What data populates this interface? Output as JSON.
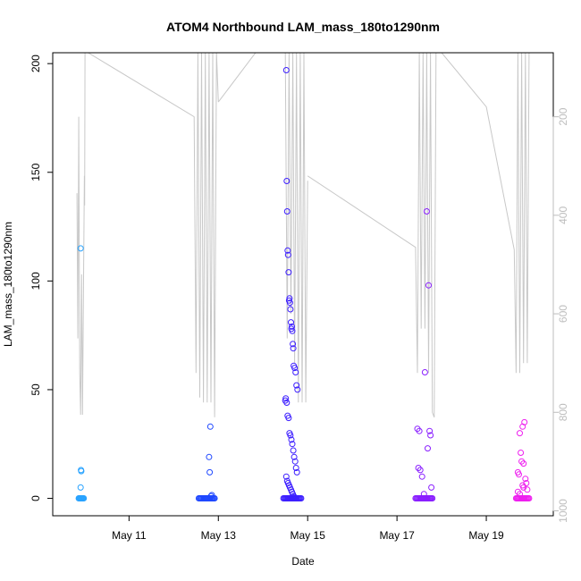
{
  "chart_data": {
    "type": "scatter",
    "title": "ATOM4 Northbound LAM_mass_180to1290nm",
    "xlabel": "Date",
    "ylabel": "LAM_mass_180to1290nm",
    "x_axis": {
      "type": "date",
      "range": [
        "2016-05-09T07:00",
        "2016-05-20T12:00"
      ],
      "ticks": [
        {
          "value": "2016-05-11",
          "label": "May 11"
        },
        {
          "value": "2016-05-13",
          "label": "May 13"
        },
        {
          "value": "2016-05-15",
          "label": "May 15"
        },
        {
          "value": "2016-05-17",
          "label": "May 17"
        },
        {
          "value": "2016-05-19",
          "label": "May 19"
        }
      ]
    },
    "y_axis": {
      "range": [
        -8,
        205
      ],
      "ticks": [
        0,
        50,
        100,
        150,
        200
      ]
    },
    "y2_axis": {
      "reversed": true,
      "color": "#bdbdbd",
      "range": [
        1010,
        70
      ],
      "ticks": [
        200,
        400,
        600,
        800,
        1000
      ]
    },
    "grid": false,
    "legend": "none",
    "colors": {
      "day1": "#29a3ff",
      "day2": "#1f48ff",
      "day3": "#3d1fff",
      "day4": "#8a1fff",
      "day5": "#ee1fef",
      "altitude_line": "#c8c8c8"
    },
    "series": [
      {
        "color": "#29a3ff",
        "x": [
          "2016-05-09T21:00",
          "2016-05-09T21:20",
          "2016-05-09T21:40",
          "2016-05-09T22:00",
          "2016-05-09T22:20",
          "2016-05-09T22:40",
          "2016-05-09T23:00",
          "2016-05-09T23:20",
          "2016-05-09T23:40",
          "2016-05-09T22:00",
          "2016-05-09T22:10",
          "2016-05-09T22:20",
          "2016-05-09T22:00"
        ],
        "y": [
          0,
          0,
          0,
          0,
          0,
          0,
          0,
          0,
          0,
          115,
          13,
          12.5,
          5
        ]
      },
      {
        "color": "#1f48ff",
        "x": [
          "2016-05-12T13:30",
          "2016-05-12T14:00",
          "2016-05-12T14:30",
          "2016-05-12T15:00",
          "2016-05-12T15:30",
          "2016-05-12T16:00",
          "2016-05-12T16:30",
          "2016-05-12T17:00",
          "2016-05-12T17:30",
          "2016-05-12T18:00",
          "2016-05-12T18:30",
          "2016-05-12T19:00",
          "2016-05-12T19:30",
          "2016-05-12T20:00",
          "2016-05-12T20:30",
          "2016-05-12T21:00",
          "2016-05-12T21:30",
          "2016-05-12T22:00",
          "2016-05-12T19:00",
          "2016-05-12T19:20",
          "2016-05-12T19:40",
          "2016-05-12T20:30",
          "2016-05-12T20:00"
        ],
        "y": [
          0,
          0,
          0,
          0,
          0,
          0,
          0,
          0,
          0,
          0,
          0,
          0,
          0,
          0,
          0,
          0,
          0,
          0,
          19,
          12,
          33,
          1.5,
          1
        ]
      },
      {
        "color": "#3d1fff",
        "x": [
          "2016-05-14T11:00",
          "2016-05-14T11:30",
          "2016-05-14T12:00",
          "2016-05-14T12:30",
          "2016-05-14T13:00",
          "2016-05-14T13:30",
          "2016-05-14T14:00",
          "2016-05-14T14:30",
          "2016-05-14T15:00",
          "2016-05-14T15:30",
          "2016-05-14T16:00",
          "2016-05-14T16:30",
          "2016-05-14T17:00",
          "2016-05-14T17:30",
          "2016-05-14T18:00",
          "2016-05-14T18:30",
          "2016-05-14T19:00",
          "2016-05-14T19:30",
          "2016-05-14T20:00",
          "2016-05-14T20:30",
          "2016-05-14T12:30",
          "2016-05-14T12:45",
          "2016-05-14T13:00",
          "2016-05-14T13:15",
          "2016-05-14T13:30",
          "2016-05-14T13:45",
          "2016-05-14T14:00",
          "2016-05-14T14:15",
          "2016-05-14T14:30",
          "2016-05-14T14:45",
          "2016-05-14T15:00",
          "2016-05-14T15:15",
          "2016-05-14T15:30",
          "2016-05-14T15:45",
          "2016-05-14T16:00",
          "2016-05-14T16:15",
          "2016-05-14T16:30",
          "2016-05-14T17:00",
          "2016-05-14T17:30",
          "2016-05-14T18:00",
          "2016-05-14T18:30",
          "2016-05-14T12:00",
          "2016-05-14T12:15",
          "2016-05-14T12:45",
          "2016-05-14T13:15",
          "2016-05-14T13:45",
          "2016-05-14T14:15",
          "2016-05-14T14:45",
          "2016-05-14T15:15",
          "2016-05-14T15:45",
          "2016-05-14T16:15",
          "2016-05-14T16:45",
          "2016-05-14T17:15",
          "2016-05-14T17:45",
          "2016-05-14T18:15",
          "2016-05-14T12:30",
          "2016-05-14T13:00",
          "2016-05-14T13:30",
          "2016-05-14T14:00",
          "2016-05-14T14:30",
          "2016-05-14T15:00",
          "2016-05-14T15:30",
          "2016-05-14T16:00",
          "2016-05-14T16:30",
          "2016-05-14T17:00"
        ],
        "y": [
          0,
          0,
          0,
          0,
          0,
          0,
          0,
          0,
          0,
          0,
          0,
          0,
          0,
          0,
          0,
          0,
          0,
          0,
          0,
          0,
          197,
          146,
          132,
          114,
          112,
          104,
          91,
          92,
          90,
          87,
          81,
          78,
          79,
          77,
          71,
          69,
          61,
          60,
          58,
          52,
          50,
          45,
          46,
          44,
          38,
          37,
          30,
          29,
          27,
          25,
          22,
          19,
          17,
          14,
          12,
          10,
          8,
          7,
          6,
          5,
          4,
          3,
          2,
          1,
          0.5
        ]
      },
      {
        "color": "#8a1fff",
        "x": [
          "2016-05-17T10:00",
          "2016-05-17T10:30",
          "2016-05-17T11:00",
          "2016-05-17T11:30",
          "2016-05-17T12:00",
          "2016-05-17T12:30",
          "2016-05-17T13:00",
          "2016-05-17T13:30",
          "2016-05-17T14:00",
          "2016-05-17T14:30",
          "2016-05-17T15:00",
          "2016-05-17T15:30",
          "2016-05-17T16:00",
          "2016-05-17T16:30",
          "2016-05-17T17:00",
          "2016-05-17T17:30",
          "2016-05-17T18:00",
          "2016-05-17T18:30",
          "2016-05-17T19:00",
          "2016-05-17T16:00",
          "2016-05-17T17:00",
          "2016-05-17T15:00",
          "2016-05-17T11:00",
          "2016-05-17T12:00",
          "2016-05-17T16:30",
          "2016-05-17T17:30",
          "2016-05-17T18:00",
          "2016-05-17T11:30",
          "2016-05-17T12:30",
          "2016-05-17T13:30",
          "2016-05-17T18:30",
          "2016-05-17T14:30"
        ],
        "y": [
          0,
          0,
          0,
          0,
          0,
          0,
          0,
          0,
          0,
          0,
          0,
          0,
          0,
          0,
          0,
          0,
          0,
          0,
          0,
          132,
          98,
          58,
          32,
          31,
          23,
          31,
          29,
          14,
          13,
          10,
          5,
          2
        ]
      },
      {
        "color": "#ee1fef",
        "x": [
          "2016-05-19T16:00",
          "2016-05-19T16:30",
          "2016-05-19T17:00",
          "2016-05-19T17:30",
          "2016-05-19T18:00",
          "2016-05-19T18:30",
          "2016-05-19T19:00",
          "2016-05-19T19:30",
          "2016-05-19T20:00",
          "2016-05-19T20:30",
          "2016-05-19T21:00",
          "2016-05-19T21:30",
          "2016-05-19T22:00",
          "2016-05-19T22:30",
          "2016-05-19T23:00",
          "2016-05-19T20:30",
          "2016-05-19T19:30",
          "2016-05-19T18:00",
          "2016-05-19T18:30",
          "2016-05-19T19:00",
          "2016-05-19T20:00",
          "2016-05-19T17:00",
          "2016-05-19T17:30",
          "2016-05-19T21:00",
          "2016-05-19T21:30",
          "2016-05-19T19:30",
          "2016-05-19T20:00",
          "2016-05-19T22:00",
          "2016-05-19T17:00",
          "2016-05-19T18:00"
        ],
        "y": [
          0,
          0,
          0,
          0,
          0,
          0,
          0,
          0,
          0,
          0,
          0,
          0,
          0,
          0,
          0,
          35,
          33,
          30,
          21,
          17,
          16,
          12,
          11,
          9,
          7,
          6,
          5,
          4,
          3,
          2
        ]
      }
    ],
    "secondary_series": {
      "color": "#c8c8c8",
      "segments": [
        {
          "x": [
            "2016-05-09T20:00",
            "2016-05-09T20:30",
            "2016-05-09T21:00",
            "2016-05-09T21:30",
            "2016-05-09T22:00",
            "2016-05-09T22:30",
            "2016-05-09T23:00",
            "2016-05-10T00:00",
            "2016-05-10T00:10",
            "2016-05-10T00:20",
            "2016-05-10T00:30"
          ],
          "y": [
            355,
            650,
            200,
            720,
            805,
            520,
            805,
            320,
            380,
            70,
            70
          ]
        },
        {
          "x": [
            "2016-05-10T02:00",
            "2016-05-12T11:00",
            "2016-05-12T12:00",
            "2016-05-12T13:00",
            "2016-05-12T14:00",
            "2016-05-12T15:00",
            "2016-05-12T16:00",
            "2016-05-12T17:00",
            "2016-05-12T18:00",
            "2016-05-12T19:00",
            "2016-05-12T20:00",
            "2016-05-12T21:00",
            "2016-05-12T22:00",
            "2016-05-12T23:00",
            "2016-05-13T00:00"
          ],
          "y": [
            70,
            200,
            720,
            70,
            770,
            70,
            780,
            70,
            780,
            70,
            780,
            70,
            810,
            70,
            170
          ]
        },
        {
          "x": [
            "2016-05-13T00:00",
            "2016-05-14T00:00",
            "2016-05-14T12:00",
            "2016-05-14T13:00",
            "2016-05-14T14:00",
            "2016-05-14T15:00",
            "2016-05-14T16:00",
            "2016-05-14T17:00",
            "2016-05-14T18:00",
            "2016-05-14T19:00",
            "2016-05-14T20:00",
            "2016-05-14T21:00",
            "2016-05-14T22:00",
            "2016-05-14T23:00",
            "2016-05-15T00:00"
          ],
          "y": [
            170,
            50,
            70,
            650,
            70,
            600,
            70,
            700,
            70,
            780,
            70,
            780,
            70,
            780,
            330
          ]
        },
        {
          "x": [
            "2016-05-15T00:00",
            "2016-05-17T10:00",
            "2016-05-17T11:00",
            "2016-05-17T12:00",
            "2016-05-17T13:00",
            "2016-05-17T14:00",
            "2016-05-17T15:00",
            "2016-05-17T16:00",
            "2016-05-17T17:00",
            "2016-05-17T18:00",
            "2016-05-17T19:00",
            "2016-05-17T20:00"
          ],
          "y": [
            320,
            465,
            720,
            70,
            630,
            70,
            630,
            70,
            720,
            70,
            800,
            810
          ]
        },
        {
          "x": [
            "2016-05-17T20:00",
            "2016-05-17T21:00",
            "2016-05-18T00:00",
            "2016-05-19T00:00",
            "2016-05-19T15:00",
            "2016-05-19T16:00",
            "2016-05-19T17:00",
            "2016-05-19T18:00",
            "2016-05-19T19:00",
            "2016-05-19T20:00",
            "2016-05-19T21:00",
            "2016-05-19T22:00",
            "2016-05-19T23:00",
            "2016-05-20T00:00"
          ],
          "y": [
            810,
            70,
            70,
            180,
            470,
            720,
            70,
            720,
            70,
            700,
            70,
            700,
            70,
            70
          ]
        }
      ]
    }
  }
}
